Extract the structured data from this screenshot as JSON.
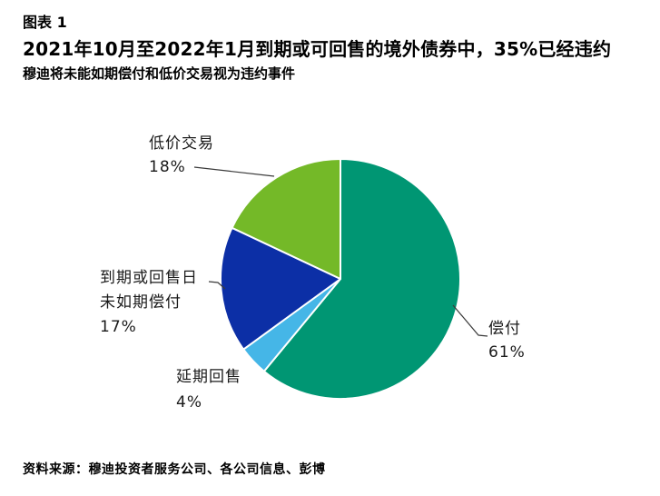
{
  "header": {
    "figure_label": "图表 1",
    "title": "2021年10月至2022年1月到期或可回售的境外债券中，35%已经违约",
    "subtitle": "穆迪将未能如期偿付和低价交易视为违约事件"
  },
  "chart_data": {
    "type": "pie",
    "title": "2021年10月至2022年1月到期或可回售的境外债券中，35%已经违约",
    "subtitle": "穆迪将未能如期偿付和低价交易视为违约事件",
    "start_angle_deg": 0,
    "direction": "clockwise",
    "legend_position": "outside-labels",
    "slices": [
      {
        "label": "偿付",
        "pct_label": "61%",
        "value": 61,
        "color": "#009673"
      },
      {
        "label": "延期回售",
        "pct_label": "4%",
        "value": 4,
        "color": "#45B6E7"
      },
      {
        "label": "到期或回售日未如期偿付",
        "label_line1": "到期或回售日",
        "label_line2": "未如期偿付",
        "pct_label": "17%",
        "value": 17,
        "color": "#0C2FA6"
      },
      {
        "label": "低价交易",
        "pct_label": "18%",
        "value": 18,
        "color": "#74B928"
      }
    ]
  },
  "footer": {
    "source": "资料来源：穆迪投资者服务公司、各公司信息、彭博"
  }
}
